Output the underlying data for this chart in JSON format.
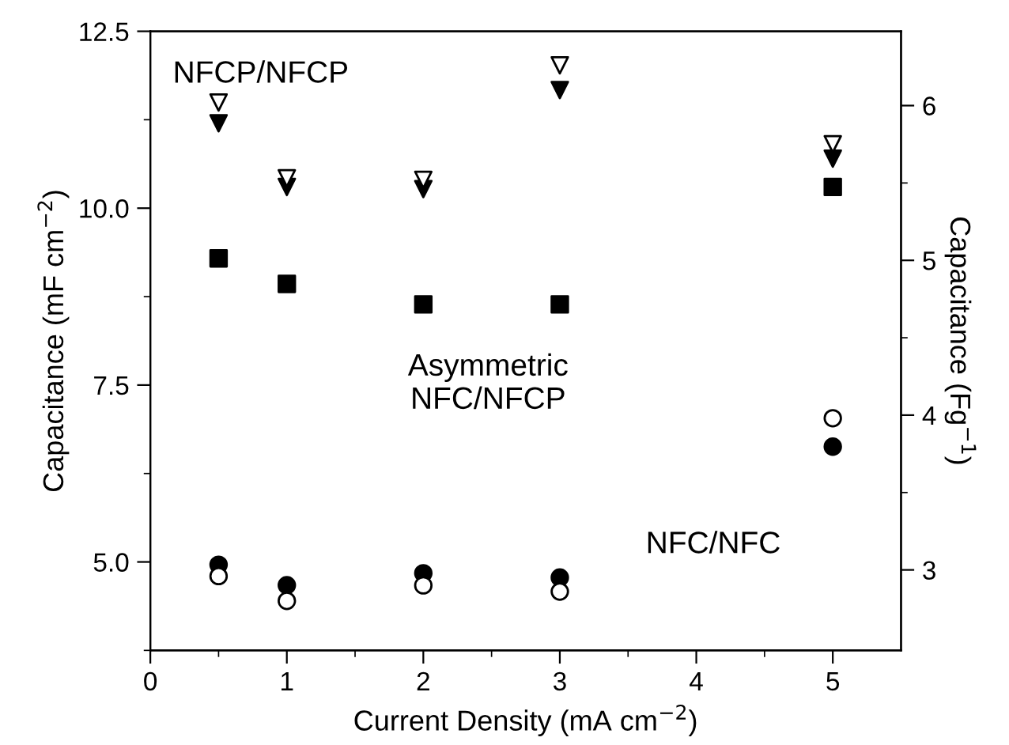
{
  "chart_data": {
    "type": "scatter",
    "xlabel": "Current Density (mA cm$^{−2}$)",
    "ylabel": "Capacitance (mF cm$^{−2}$)",
    "y2label": "Capacitance (Fg$^{−1}$)",
    "x": [
      0.5,
      1,
      2,
      3,
      5
    ],
    "series": [
      {
        "color": "#000000",
        "marker": "triangle",
        "values": [
          11.2,
          10.3,
          10.27,
          11.67,
          10.7
        ]
      },
      {
        "color": "#ffffff",
        "marker": "triangle",
        "axis": "y2",
        "values": [
          6.02,
          5.53,
          5.52,
          6.26,
          5.75
        ]
      },
      {
        "color": "#000000",
        "marker": "square",
        "values": [
          9.29,
          8.93,
          8.64,
          8.64,
          10.3
        ]
      },
      {
        "color": "#000000",
        "marker": "circle",
        "values": [
          4.96,
          4.67,
          4.84,
          4.78,
          6.63
        ]
      },
      {
        "color": "#ffffff",
        "marker": "circle",
        "axis": "y2",
        "values": [
          2.96,
          2.8,
          2.9,
          2.86,
          3.98
        ]
      }
    ],
    "annotations": [
      "NFCP/NFCP",
      "Asymmetric\nNFC/NFCP",
      "NFC/NFC"
    ],
    "xlim": [
      0,
      5.5
    ],
    "xticks": [
      0,
      {
        "value": 0.5,
        "label": null
      },
      1,
      {
        "value": 1.5,
        "label": null
      },
      2,
      {
        "value": 2.5,
        "label": null
      },
      3,
      {
        "value": 3.5,
        "label": null
      },
      4,
      {
        "value": 4.5,
        "label": null
      },
      5
    ],
    "ylim": [
      3.75,
      12.5
    ],
    "yticks": [
      {
        "value": 3.75,
        "label": null
      },
      {
        "value": 5,
        "label": "5.0"
      },
      {
        "value": 6.25,
        "label": null
      },
      7.5,
      {
        "value": 8.75,
        "label": null
      },
      {
        "value": 10,
        "label": "10.0"
      },
      {
        "value": 11.25,
        "label": null
      },
      12.5
    ],
    "y2lim": [
      2.48,
      6.48
    ],
    "y2ticks": [
      3,
      {
        "value": 3.5,
        "label": null
      },
      4,
      {
        "value": 4.5,
        "label": null
      },
      5,
      {
        "value": 5.5,
        "label": null
      },
      6
    ],
    "grid": false,
    "legend": false
  }
}
